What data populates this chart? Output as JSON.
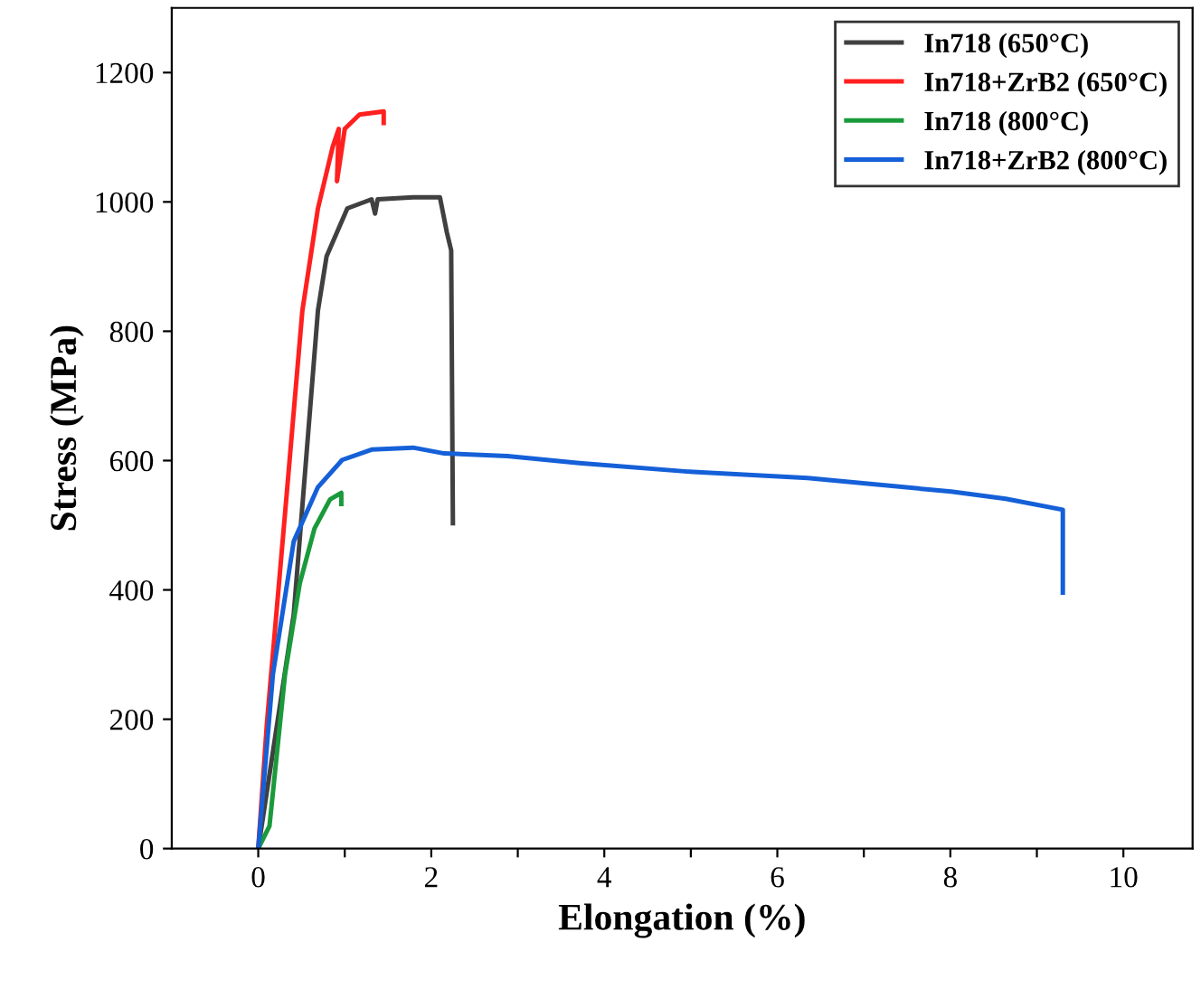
{
  "chart_data": {
    "type": "line",
    "xlabel": "Elongation (%)",
    "ylabel": "Stress (MPa)",
    "xlim": [
      -1,
      10.8
    ],
    "ylim": [
      0,
      1300
    ],
    "xticks": [
      0,
      {
        "value": 1,
        "label": null
      },
      2,
      {
        "value": 3,
        "label": null
      },
      4,
      {
        "value": 5,
        "label": null
      },
      6,
      {
        "value": 7,
        "label": null
      },
      8,
      {
        "value": 9,
        "label": null
      },
      10
    ],
    "yticks": [
      0,
      200,
      400,
      600,
      800,
      1000,
      1200
    ],
    "grid": false,
    "legend": "top right",
    "marker": "none",
    "line_style": "solid",
    "series": [
      {
        "name": "In718 (650°C)",
        "color": "#404040",
        "x": [
          0,
          0.41,
          0.69,
          0.79,
          1.03,
          1.31,
          1.35,
          1.38,
          1.79,
          2.1,
          2.18,
          2.23,
          2.25
        ],
        "values": [
          0,
          362,
          832,
          916,
          990,
          1004,
          982,
          1004,
          1007,
          1007,
          953,
          925,
          503
        ]
      },
      {
        "name": "In718+ZrB2 (650°C)",
        "color": "#ff2020",
        "x": [
          0,
          0.1,
          0.33,
          0.51,
          0.69,
          0.86,
          0.93,
          0.91,
          1.0,
          1.17,
          1.45,
          1.45
        ],
        "values": [
          0,
          194,
          550,
          832,
          990,
          1085,
          1113,
          1032,
          1113,
          1135,
          1140,
          1122
        ]
      },
      {
        "name": "In718 (800°C)",
        "color": "#1a9a3a",
        "x": [
          0,
          0.13,
          0.31,
          0.48,
          0.65,
          0.83,
          0.96,
          0.96
        ],
        "values": [
          0,
          35,
          270,
          410,
          495,
          540,
          550,
          533
        ]
      },
      {
        "name": "In718+ZrB2 (800°C)",
        "color": "#1560d8",
        "x": [
          0,
          0.17,
          0.41,
          0.69,
          0.97,
          1.31,
          1.79,
          2.15,
          2.88,
          3.71,
          4.96,
          6.35,
          8.01,
          8.64,
          9.3,
          9.3
        ],
        "values": [
          0,
          270,
          475,
          559,
          601,
          617,
          620,
          611,
          607,
          596,
          583,
          573,
          552,
          541,
          524,
          396
        ]
      }
    ]
  }
}
